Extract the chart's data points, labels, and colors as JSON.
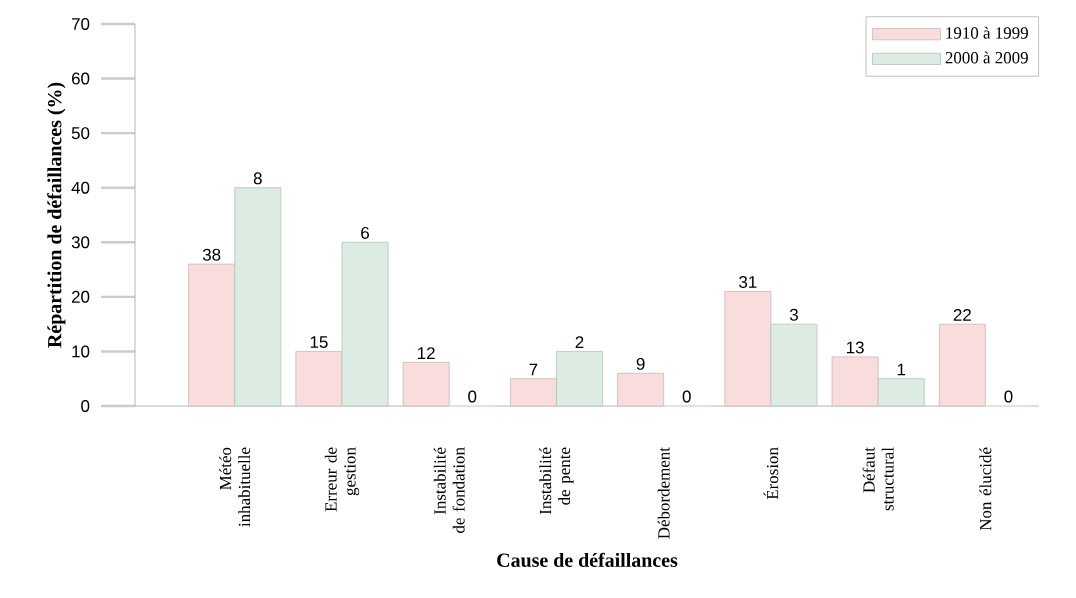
{
  "chart_data": {
    "type": "bar",
    "xlabel": "Cause de défaillances",
    "ylabel": "Répartition de défaillances (%)",
    "categories": [
      "Météo inhabituelle",
      "Erreur de gestion",
      "Instabilité de fondation",
      "Instabilité de pente",
      "Débordement",
      "Érosion",
      "Défaut structural",
      "Non élucidé"
    ],
    "series": [
      {
        "name": "1910 à 1999",
        "color": "#f9dcdc",
        "values": [
          26,
          10,
          8,
          5,
          6,
          21,
          9,
          15
        ]
      },
      {
        "name": "2000 à 2009",
        "color": "#dcece2",
        "values": [
          40,
          30,
          0,
          10,
          0,
          15,
          5,
          0
        ]
      }
    ],
    "annotations": [
      {
        "text": "38",
        "x": "Météo inhabituelle",
        "y": 26
      },
      {
        "text": "8",
        "x": "Météo inhabituelle",
        "y": 40
      },
      {
        "text": "15",
        "x": "Erreur de gestion",
        "y": 10
      },
      {
        "text": "6",
        "x": "Erreur de gestion",
        "y": 30
      },
      {
        "text": "12",
        "x": "Instabilité de fondation",
        "y": 8
      },
      {
        "text": "0",
        "x": "Instabilité de fondation",
        "y": 0
      },
      {
        "text": "7",
        "x": "Instabilité de pente",
        "y": 5
      },
      {
        "text": "2",
        "x": "Instabilité de pente",
        "y": 10
      },
      {
        "text": "9",
        "x": "Débordement",
        "y": 6
      },
      {
        "text": "0",
        "x": "Débordement",
        "y": 0
      },
      {
        "text": "31",
        "x": "Érosion",
        "y": 21
      },
      {
        "text": "3",
        "x": "Érosion",
        "y": 15
      },
      {
        "text": "13",
        "x": "Défaut structural",
        "y": 9
      },
      {
        "text": "1",
        "x": "Défaut structural",
        "y": 5
      },
      {
        "text": "22",
        "x": "Non élucidé",
        "y": 15
      },
      {
        "text": "0",
        "x": "Non élucidé",
        "y": 0
      }
    ],
    "ylim": [
      0,
      70
    ],
    "yticks": [
      0,
      10,
      20,
      30,
      40,
      50,
      60,
      70
    ],
    "grid": false,
    "legend": "top right"
  }
}
